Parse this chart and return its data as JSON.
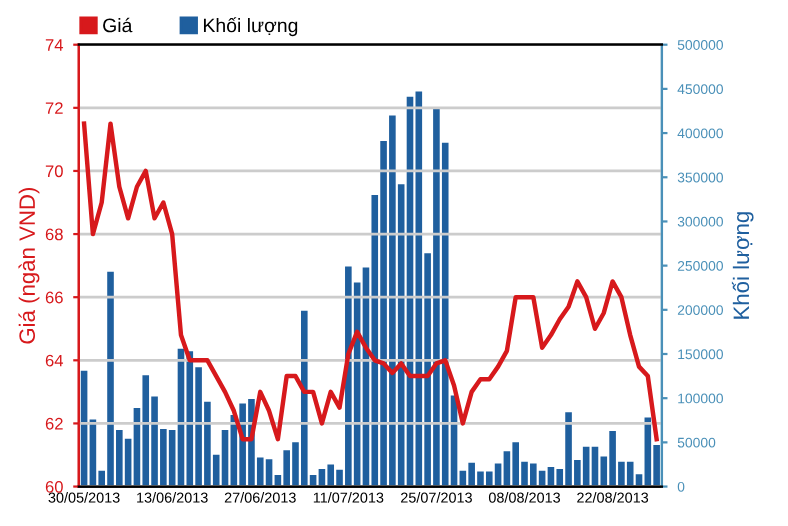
{
  "chart_data": {
    "type": "bar",
    "categories": [
      "30/05/2013",
      null,
      null,
      null,
      null,
      null,
      null,
      null,
      null,
      null,
      "13/06/2013",
      null,
      null,
      null,
      null,
      null,
      null,
      null,
      null,
      null,
      "27/06/2013",
      null,
      null,
      null,
      null,
      null,
      null,
      null,
      null,
      null,
      "11/07/2013",
      null,
      null,
      null,
      null,
      null,
      null,
      null,
      null,
      null,
      "25/07/2013",
      null,
      null,
      null,
      null,
      null,
      null,
      null,
      null,
      null,
      "08/08/2013",
      null,
      null,
      null,
      null,
      null,
      null,
      null,
      null,
      null,
      "22/08/2013",
      null,
      null,
      null,
      null,
      null
    ],
    "series": [
      {
        "name": "Khối lượng",
        "axis": "y2",
        "color": "#1f5f9e",
        "values": [
          131000,
          76000,
          18000,
          243000,
          64000,
          54000,
          89000,
          126000,
          102000,
          65000,
          64000,
          156000,
          153000,
          135000,
          96000,
          36000,
          64000,
          81000,
          94000,
          99000,
          33000,
          31000,
          13000,
          41000,
          50000,
          199000,
          13000,
          20000,
          25000,
          19000,
          249000,
          231000,
          248000,
          330000,
          391000,
          420000,
          342000,
          441000,
          447000,
          264000,
          428000,
          389000,
          103000,
          18000,
          27000,
          17000,
          17000,
          26000,
          40000,
          50000,
          28000,
          26000,
          18000,
          22000,
          20000,
          84000,
          30000,
          45000,
          45000,
          34000,
          63000,
          28000,
          28000,
          14000,
          78000,
          47000
        ]
      },
      {
        "name": "Giá",
        "type": "line",
        "color": "#d7191c",
        "values": [
          71.5,
          68.0,
          69.0,
          71.5,
          69.5,
          68.5,
          69.5,
          70.0,
          68.5,
          69.0,
          68.0,
          64.8,
          64.0,
          64.0,
          64.0,
          63.5,
          63.0,
          62.4,
          61.5,
          61.5,
          63.0,
          62.4,
          61.5,
          63.5,
          63.5,
          63.0,
          63.0,
          62.0,
          63.0,
          62.5,
          64.2,
          64.9,
          64.4,
          64.0,
          63.9,
          63.6,
          63.9,
          63.5,
          63.5,
          63.5,
          63.9,
          64.0,
          63.2,
          62.0,
          63.0,
          63.4,
          63.4,
          63.8,
          64.3,
          66.0,
          66.0,
          66.0,
          64.4,
          64.8,
          65.3,
          65.7,
          66.5,
          66.0,
          65.0,
          65.5,
          66.5,
          66.0,
          64.8,
          63.8,
          63.5,
          61.5
        ]
      }
    ],
    "ylabel": "Giá (ngàn VND)",
    "y2label": "Khối lượng",
    "ylim": [
      60,
      74
    ],
    "yticks": [
      60,
      62,
      64,
      66,
      68,
      70,
      72,
      74
    ],
    "y2lim": [
      0,
      500000
    ],
    "y2ticks": [
      0,
      50000,
      100000,
      150000,
      200000,
      250000,
      300000,
      350000,
      400000,
      450000,
      500000
    ],
    "grid": "y",
    "legend": "top left",
    "marker": "none",
    "line_style": "solid"
  }
}
